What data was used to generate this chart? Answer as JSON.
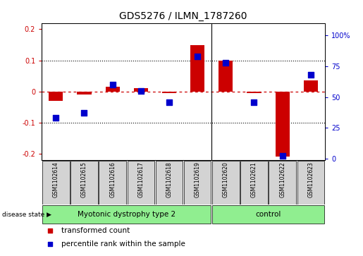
{
  "title": "GDS5276 / ILMN_1787260",
  "samples": [
    "GSM1102614",
    "GSM1102615",
    "GSM1102616",
    "GSM1102617",
    "GSM1102618",
    "GSM1102619",
    "GSM1102620",
    "GSM1102621",
    "GSM1102622",
    "GSM1102623"
  ],
  "red_values": [
    -0.03,
    -0.01,
    0.015,
    0.01,
    -0.005,
    0.15,
    0.1,
    -0.005,
    -0.21,
    0.035
  ],
  "blue_values": [
    33,
    37,
    60,
    55,
    46,
    83,
    78,
    46,
    2,
    68
  ],
  "ylim_left": [
    -0.22,
    0.22
  ],
  "ylim_right": [
    -1.1,
    110
  ],
  "yticks_left": [
    -0.2,
    -0.1,
    0.0,
    0.1,
    0.2
  ],
  "yticks_right": [
    0,
    25,
    50,
    75,
    100
  ],
  "ytick_labels_left": [
    "-0.2",
    "-0.1",
    "0",
    "0.1",
    "0.2"
  ],
  "ytick_labels_right": [
    "0",
    "25",
    "50",
    "75",
    "100%"
  ],
  "group_boundary": 5.5,
  "red_color": "#cc0000",
  "blue_color": "#0000cc",
  "bar_width": 0.5,
  "blue_marker_size": 35,
  "dotted_linewidth": 0.8,
  "zero_line_color": "#cc0000",
  "bg_color": "#ffffff",
  "disease_groups": [
    {
      "label": "Myotonic dystrophy type 2",
      "n_samples": 6,
      "color": "#90EE90"
    },
    {
      "label": "control",
      "n_samples": 4,
      "color": "#90EE90"
    }
  ],
  "legend_items": [
    {
      "label": "transformed count",
      "color": "#cc0000"
    },
    {
      "label": "percentile rank within the sample",
      "color": "#0000cc"
    }
  ],
  "disease_state_label": "disease state",
  "xlabel_area_color": "#d3d3d3",
  "title_fontsize": 10,
  "tick_fontsize": 7,
  "label_fontsize": 7.5,
  "legend_fontsize": 7.5
}
